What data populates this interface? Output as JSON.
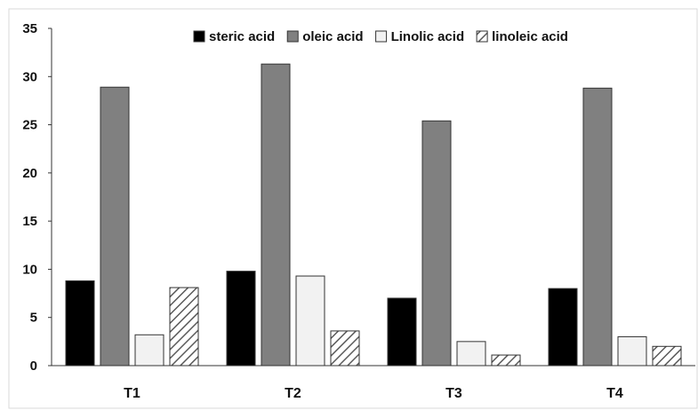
{
  "chart_data": {
    "type": "bar",
    "categories": [
      "T1",
      "T2",
      "T3",
      "T4"
    ],
    "series": [
      {
        "name": "steric acid",
        "values": [
          8.8,
          9.8,
          7.0,
          8.0
        ],
        "color": "#000000",
        "pattern": "solid"
      },
      {
        "name": "oleic acid",
        "values": [
          28.9,
          31.3,
          25.4,
          28.8
        ],
        "color": "#808080",
        "pattern": "solid"
      },
      {
        "name": "Linolic acid",
        "values": [
          3.2,
          9.3,
          2.5,
          3.0
        ],
        "color": "#f2f2f2",
        "pattern": "solid"
      },
      {
        "name": "linoleic acid",
        "values": [
          8.1,
          3.6,
          1.1,
          2.0
        ],
        "color": "#ffffff",
        "pattern": "diagonal-hatch"
      }
    ],
    "ylim": [
      0,
      35
    ],
    "yticks": [
      "0",
      "5",
      "10",
      "15",
      "20",
      "25",
      "30",
      "35"
    ],
    "title": "",
    "xlabel": "",
    "ylabel": "",
    "grid": false,
    "legend_position": "top"
  }
}
